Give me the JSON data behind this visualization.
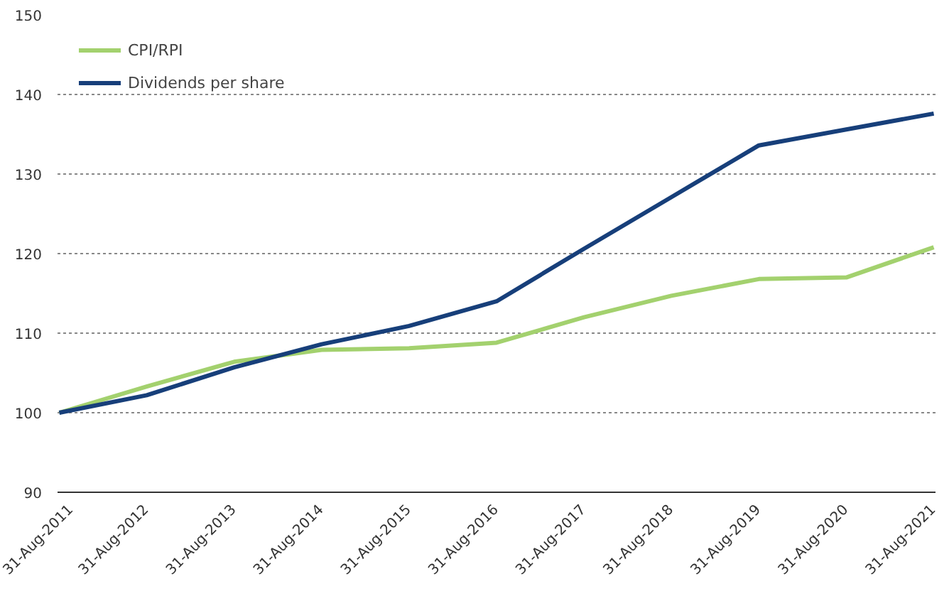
{
  "chart_data": {
    "type": "line",
    "categories": [
      "31-Aug-2011",
      "31-Aug-2012",
      "31-Aug-2013",
      "31-Aug-2014",
      "31-Aug-2015",
      "31-Aug-2016",
      "31-Aug-2017",
      "31-Aug-2018",
      "31-Aug-2019",
      "31-Aug-2020",
      "31-Aug-2021"
    ],
    "series": [
      {
        "name": "CPI/RPI",
        "color": "#a3d16e",
        "values": [
          100,
          103.3,
          106.4,
          107.9,
          108.1,
          108.8,
          112,
          114.7,
          116.8,
          117,
          120.8
        ]
      },
      {
        "name": "Dividends per share",
        "color": "#173f7a",
        "values": [
          100,
          102.2,
          105.7,
          108.6,
          110.9,
          114,
          120.6,
          127.1,
          133.6,
          135.6,
          137.6
        ]
      }
    ],
    "ylim": [
      90,
      150
    ],
    "yticks": [
      90,
      100,
      110,
      120,
      130,
      140,
      150
    ],
    "grid": "y",
    "legend": "top left",
    "line_style": "solid",
    "marker": "none"
  }
}
